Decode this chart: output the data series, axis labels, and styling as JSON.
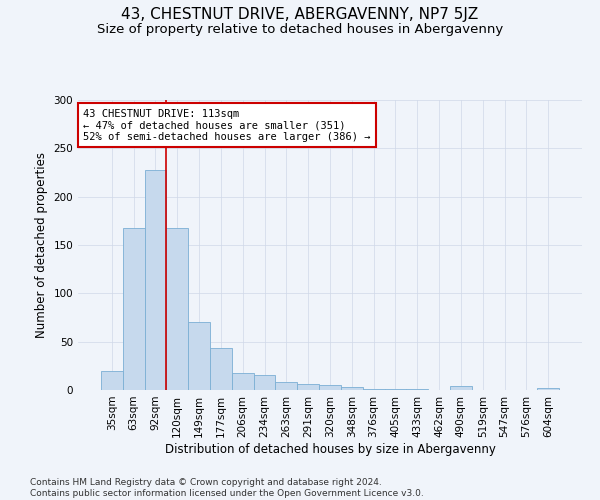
{
  "title": "43, CHESTNUT DRIVE, ABERGAVENNY, NP7 5JZ",
  "subtitle": "Size of property relative to detached houses in Abergavenny",
  "xlabel": "Distribution of detached houses by size in Abergavenny",
  "ylabel": "Number of detached properties",
  "categories": [
    "35sqm",
    "63sqm",
    "92sqm",
    "120sqm",
    "149sqm",
    "177sqm",
    "206sqm",
    "234sqm",
    "263sqm",
    "291sqm",
    "320sqm",
    "348sqm",
    "376sqm",
    "405sqm",
    "433sqm",
    "462sqm",
    "490sqm",
    "519sqm",
    "547sqm",
    "576sqm",
    "604sqm"
  ],
  "values": [
    20,
    168,
    228,
    168,
    70,
    43,
    18,
    16,
    8,
    6,
    5,
    3,
    1,
    1,
    1,
    0,
    4,
    0,
    0,
    0,
    2
  ],
  "bar_color": "#c6d9ed",
  "bar_edge_color": "#7bafd4",
  "vline_x": 2.5,
  "vline_color": "#cc0000",
  "annotation_text": "43 CHESTNUT DRIVE: 113sqm\n← 47% of detached houses are smaller (351)\n52% of semi-detached houses are larger (386) →",
  "annotation_box_color": "white",
  "annotation_box_edge": "#cc0000",
  "ylim": [
    0,
    300
  ],
  "yticks": [
    0,
    50,
    100,
    150,
    200,
    250,
    300
  ],
  "footer": "Contains HM Land Registry data © Crown copyright and database right 2024.\nContains public sector information licensed under the Open Government Licence v3.0.",
  "bg_color": "#f0f4fa",
  "grid_color": "#d0d8e8",
  "title_fontsize": 11,
  "subtitle_fontsize": 9.5,
  "xlabel_fontsize": 8.5,
  "ylabel_fontsize": 8.5,
  "tick_fontsize": 7.5,
  "annotation_fontsize": 7.5,
  "footer_fontsize": 6.5
}
